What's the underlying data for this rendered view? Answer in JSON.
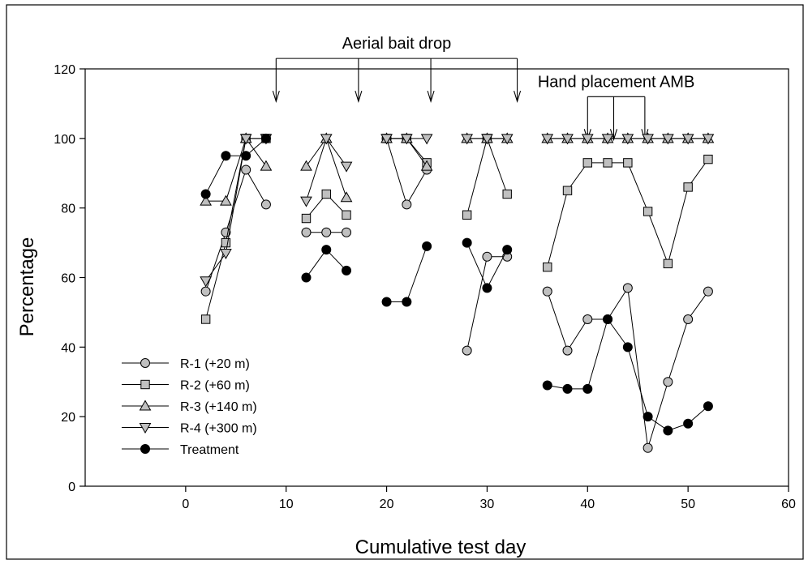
{
  "chart_data": {
    "type": "line",
    "xlabel": "Cumulative test day",
    "ylabel": "Percentage",
    "xlim": [
      -10,
      60
    ],
    "ylim": [
      0,
      120
    ],
    "xticks": [
      0,
      10,
      20,
      30,
      40,
      50,
      60
    ],
    "yticks": [
      0,
      20,
      40,
      60,
      80,
      100,
      120
    ],
    "grid": false,
    "legend_position": "bottom-left",
    "annotations": {
      "aerial": {
        "label": "Aerial bait drop",
        "arrow_x": [
          9,
          17.2,
          24.4,
          33
        ],
        "top_y": 123
      },
      "hand": {
        "label": "Hand placement AMB",
        "arrow_x": [
          40,
          42.6,
          45.7
        ],
        "top_y": 112
      }
    },
    "series": [
      {
        "name": "R-1 (+20 m)",
        "marker": "circle",
        "fill": "#c0c0c0",
        "segments": [
          [
            [
              2,
              56
            ],
            [
              4,
              73
            ],
            [
              6,
              91
            ],
            [
              8,
              81
            ]
          ],
          [
            [
              12,
              73
            ],
            [
              14,
              73
            ],
            [
              16,
              73
            ]
          ],
          [
            [
              20,
              100
            ],
            [
              22,
              81
            ],
            [
              24,
              91
            ]
          ],
          [
            [
              28,
              39
            ],
            [
              30,
              66
            ],
            [
              32,
              66
            ]
          ],
          [
            [
              36,
              56
            ],
            [
              38,
              39
            ],
            [
              40,
              48
            ],
            [
              42,
              48
            ],
            [
              44,
              57
            ],
            [
              46,
              11
            ],
            [
              48,
              30
            ],
            [
              50,
              48
            ],
            [
              52,
              56
            ]
          ]
        ]
      },
      {
        "name": "R-2 (+60 m)",
        "marker": "square",
        "fill": "#c0c0c0",
        "segments": [
          [
            [
              2,
              48
            ],
            [
              4,
              70
            ],
            [
              6,
              100
            ],
            [
              8,
              100
            ]
          ],
          [
            [
              12,
              77
            ],
            [
              14,
              84
            ],
            [
              16,
              78
            ]
          ],
          [
            [
              20,
              100
            ],
            [
              22,
              100
            ],
            [
              24,
              93
            ]
          ],
          [
            [
              28,
              78
            ],
            [
              30,
              100
            ],
            [
              32,
              84
            ]
          ],
          [
            [
              36,
              63
            ],
            [
              38,
              85
            ],
            [
              40,
              93
            ],
            [
              42,
              93
            ],
            [
              44,
              93
            ],
            [
              46,
              79
            ],
            [
              48,
              64
            ],
            [
              50,
              86
            ],
            [
              52,
              94
            ]
          ]
        ]
      },
      {
        "name": "R-3 (+140 m)",
        "marker": "triangle-up",
        "fill": "#c0c0c0",
        "segments": [
          [
            [
              2,
              82
            ],
            [
              4,
              82
            ],
            [
              6,
              100
            ],
            [
              8,
              92
            ]
          ],
          [
            [
              12,
              92
            ],
            [
              14,
              100
            ],
            [
              16,
              83
            ]
          ],
          [
            [
              20,
              100
            ],
            [
              22,
              100
            ],
            [
              24,
              92
            ]
          ],
          [
            [
              28,
              100
            ],
            [
              30,
              100
            ],
            [
              32,
              100
            ]
          ],
          [
            [
              36,
              100
            ],
            [
              38,
              100
            ],
            [
              40,
              100
            ],
            [
              42,
              100
            ],
            [
              44,
              100
            ],
            [
              46,
              100
            ],
            [
              48,
              100
            ],
            [
              50,
              100
            ],
            [
              52,
              100
            ]
          ]
        ]
      },
      {
        "name": "R-4 (+300 m)",
        "marker": "triangle-down",
        "fill": "#c0c0c0",
        "segments": [
          [
            [
              2,
              59
            ],
            [
              4,
              67
            ],
            [
              6,
              100
            ],
            [
              8,
              100
            ]
          ],
          [
            [
              12,
              82
            ],
            [
              14,
              100
            ],
            [
              16,
              92
            ]
          ],
          [
            [
              20,
              100
            ],
            [
              22,
              100
            ],
            [
              24,
              100
            ]
          ],
          [
            [
              28,
              100
            ],
            [
              30,
              100
            ],
            [
              32,
              100
            ]
          ],
          [
            [
              36,
              100
            ],
            [
              38,
              100
            ],
            [
              40,
              100
            ],
            [
              42,
              100
            ],
            [
              44,
              100
            ],
            [
              46,
              100
            ],
            [
              48,
              100
            ],
            [
              50,
              100
            ],
            [
              52,
              100
            ]
          ]
        ]
      },
      {
        "name": "Treatment",
        "marker": "circle",
        "fill": "#000000",
        "segments": [
          [
            [
              2,
              84
            ],
            [
              4,
              95
            ],
            [
              6,
              95
            ],
            [
              8,
              100
            ]
          ],
          [
            [
              12,
              60
            ],
            [
              14,
              68
            ],
            [
              16,
              62
            ]
          ],
          [
            [
              20,
              53
            ],
            [
              22,
              53
            ],
            [
              24,
              69
            ]
          ],
          [
            [
              28,
              70
            ],
            [
              30,
              57
            ],
            [
              32,
              68
            ]
          ],
          [
            [
              36,
              29
            ],
            [
              38,
              28
            ],
            [
              40,
              28
            ],
            [
              42,
              48
            ],
            [
              44,
              40
            ],
            [
              46,
              20
            ],
            [
              48,
              16
            ],
            [
              50,
              18
            ],
            [
              52,
              23
            ]
          ]
        ]
      }
    ]
  }
}
